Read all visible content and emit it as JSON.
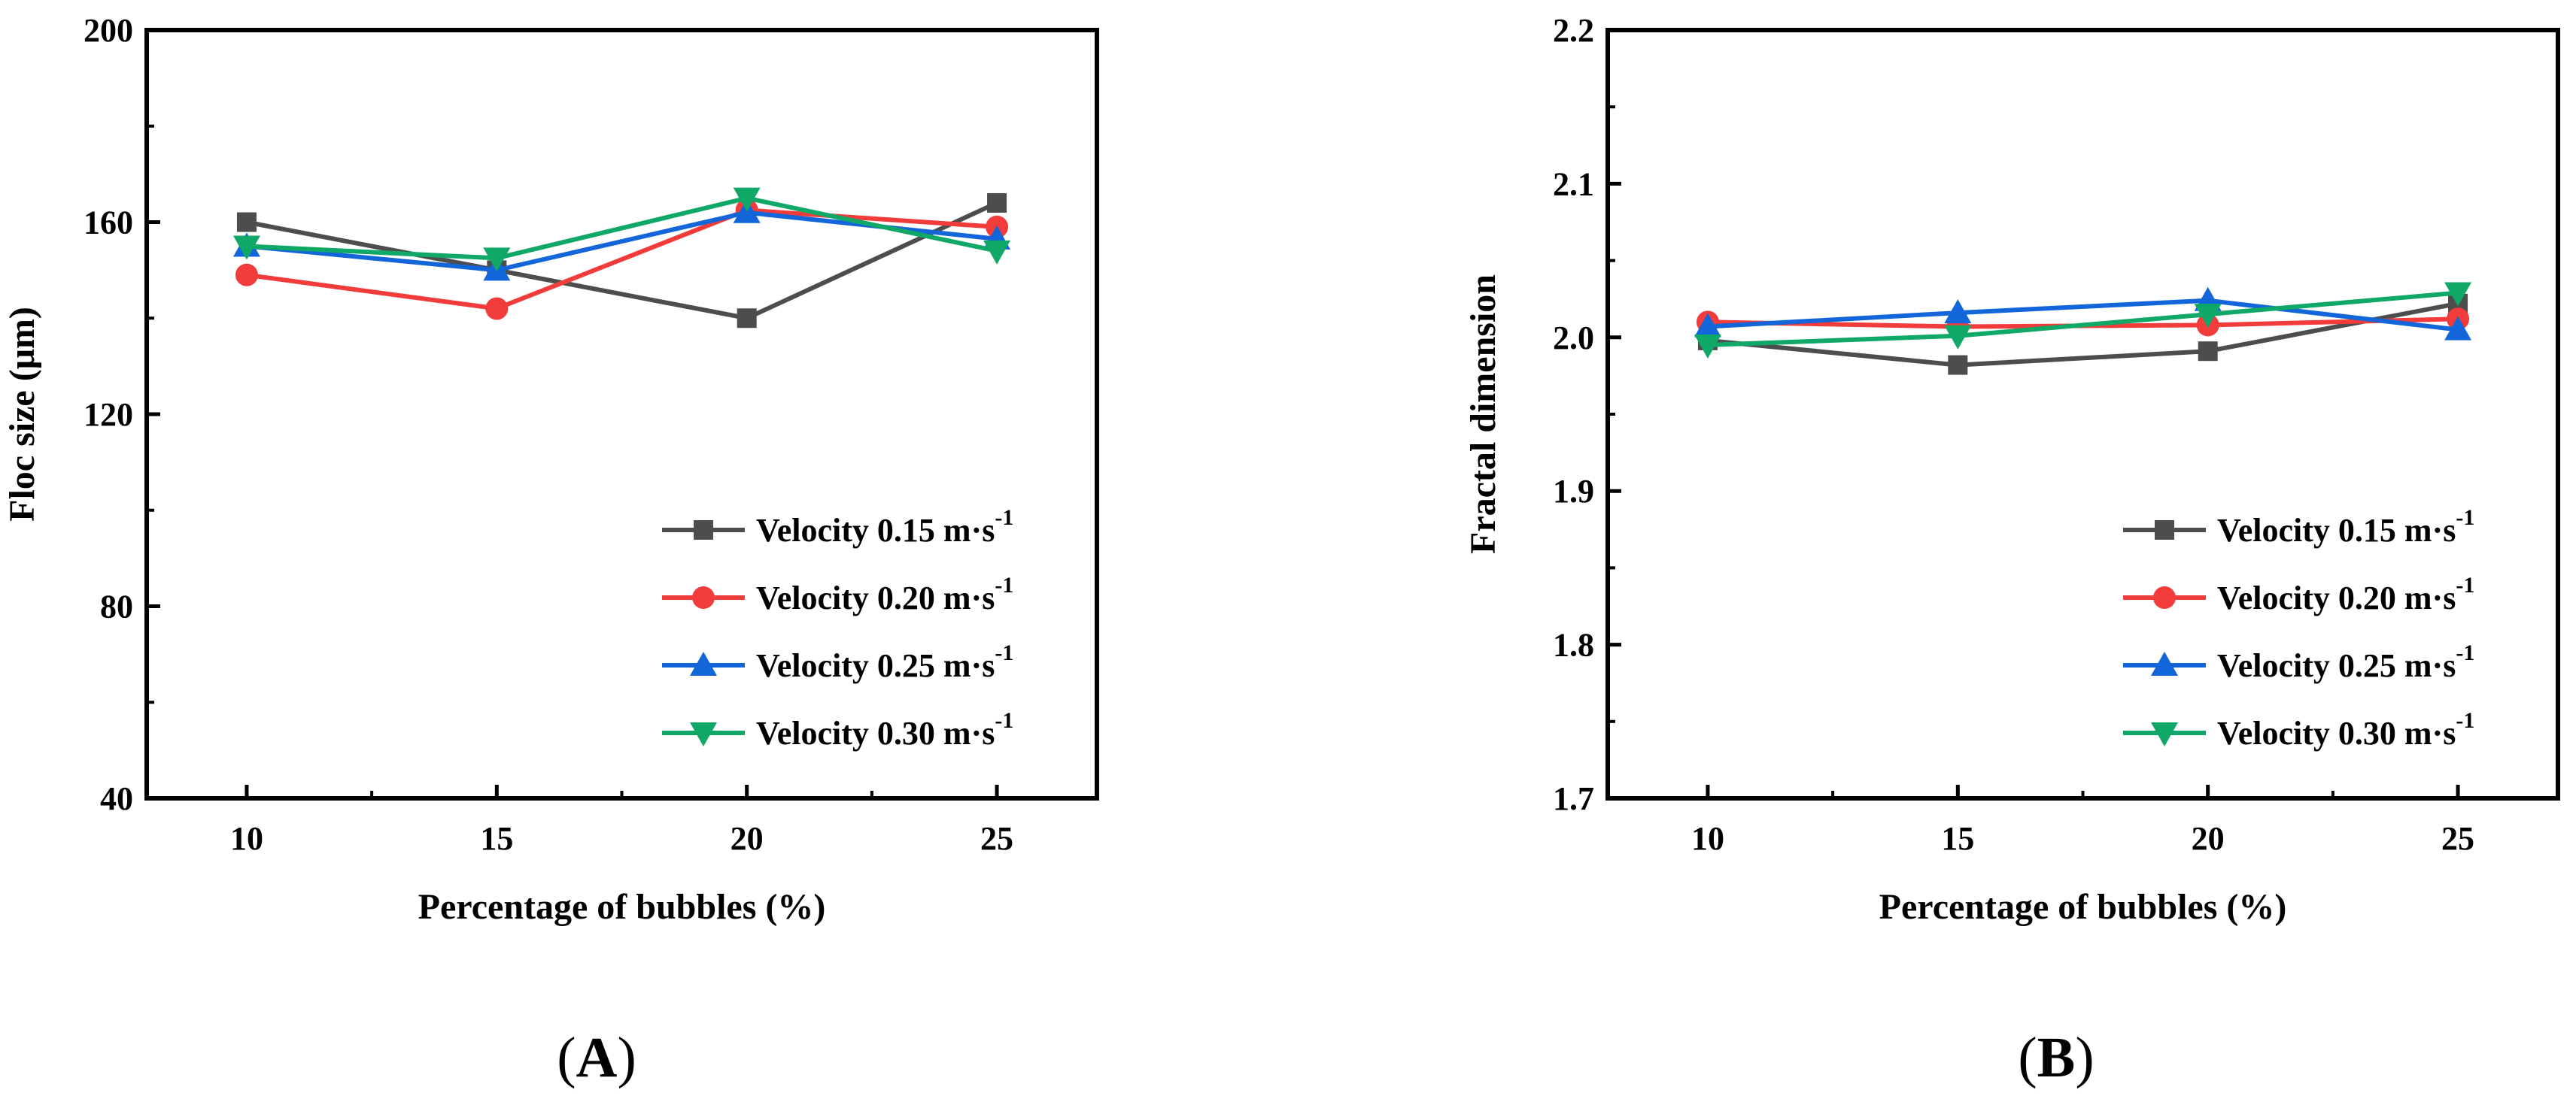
{
  "chart_data": [
    {
      "type": "line",
      "panel_label": "A",
      "xlabel": "Percentage of bubbles (%)",
      "ylabel": "Floc size (μm)",
      "x": [
        10,
        15,
        20,
        25
      ],
      "xlim": [
        8,
        27
      ],
      "ylim": [
        40,
        200
      ],
      "xticks": [
        10,
        15,
        20,
        25
      ],
      "yticks": [
        40,
        80,
        120,
        160,
        200
      ],
      "tick_labels_x": [
        "10",
        "15",
        "20",
        "25"
      ],
      "tick_labels_y": [
        "40",
        "80",
        "120",
        "160",
        "200"
      ],
      "legend_position": "bottom-right",
      "series": [
        {
          "name": "Velocity 0.15 m·s",
          "sup": "-1",
          "color": "#4d4d4d",
          "marker": "square",
          "values": [
            160,
            150,
            140,
            164
          ]
        },
        {
          "name": "Velocity 0.20 m·s",
          "sup": "-1",
          "color": "#f23c3c",
          "marker": "circle",
          "values": [
            149,
            142,
            162.5,
            159
          ]
        },
        {
          "name": "Velocity 0.25 m·s",
          "sup": "-1",
          "color": "#1266d9",
          "marker": "triangle-up",
          "values": [
            155,
            150,
            162,
            156.5
          ]
        },
        {
          "name": "Velocity 0.30 m·s",
          "sup": "-1",
          "color": "#0fa866",
          "marker": "triangle-down",
          "values": [
            155,
            152.5,
            165,
            154
          ]
        }
      ]
    },
    {
      "type": "line",
      "panel_label": "B",
      "xlabel": "Percentage of bubbles (%)",
      "ylabel": "Fractal dimension",
      "x": [
        10,
        15,
        20,
        25
      ],
      "xlim": [
        8,
        27
      ],
      "ylim": [
        1.7,
        2.2
      ],
      "xticks": [
        10,
        15,
        20,
        25
      ],
      "yticks": [
        1.7,
        1.8,
        1.9,
        2.0,
        2.1,
        2.2
      ],
      "tick_labels_x": [
        "10",
        "15",
        "20",
        "25"
      ],
      "tick_labels_y": [
        "1.7",
        "1.8",
        "1.9",
        "2.0",
        "2.1",
        "2.2"
      ],
      "legend_position": "bottom-right",
      "series": [
        {
          "name": "Velocity 0.15 m·s",
          "sup": "-1",
          "color": "#4d4d4d",
          "marker": "square",
          "values": [
            1.998,
            1.982,
            1.991,
            2.022
          ]
        },
        {
          "name": "Velocity 0.20 m·s",
          "sup": "-1",
          "color": "#f23c3c",
          "marker": "circle",
          "values": [
            2.01,
            2.007,
            2.008,
            2.012
          ]
        },
        {
          "name": "Velocity 0.25 m·s",
          "sup": "-1",
          "color": "#1266d9",
          "marker": "triangle-up",
          "values": [
            2.007,
            2.016,
            2.024,
            2.005
          ]
        },
        {
          "name": "Velocity 0.30 m·s",
          "sup": "-1",
          "color": "#0fa866",
          "marker": "triangle-down",
          "values": [
            1.995,
            2.001,
            2.015,
            2.029
          ]
        }
      ]
    }
  ]
}
